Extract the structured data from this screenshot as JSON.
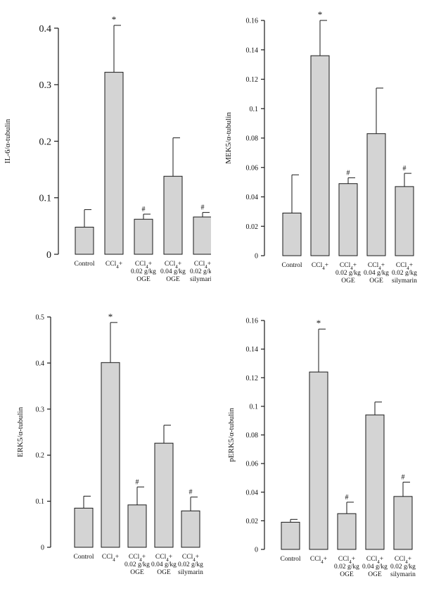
{
  "colors": {
    "bar": "#d4d4d4",
    "stroke": "#1a1a1a"
  },
  "chart_data": [
    {
      "type": "bar",
      "ylabel": "IL-6/α-tubulin",
      "ylim": [
        0,
        0.4
      ],
      "yticks": [
        "0",
        "0.1",
        "0.2",
        "0.3",
        "0.4"
      ],
      "tick_values": [
        0,
        0.1,
        0.2,
        0.3,
        0.4
      ],
      "categories": [
        [
          "Control"
        ],
        [
          "CCl4+"
        ],
        [
          "CCl4+",
          "0.02 g/kg",
          "OGE"
        ],
        [
          "CCl4+",
          "0.04 g/kg",
          "OGE"
        ],
        [
          "CCl4+",
          "0.02 g/kg",
          "silymarin"
        ]
      ],
      "values": [
        0.048,
        0.322,
        0.062,
        0.138,
        0.066
      ],
      "errors": [
        0.031,
        0.083,
        0.009,
        0.068,
        0.008
      ],
      "annotations": [
        "",
        "*",
        "#",
        "",
        "#"
      ]
    },
    {
      "type": "bar",
      "ylabel": "MEK5/α-tubulin",
      "ylim": [
        0,
        0.16
      ],
      "yticks": [
        "0",
        "0.02",
        "0.04",
        "0.06",
        "0.08",
        "0.1",
        "0.12",
        "0.14",
        "0.16"
      ],
      "tick_values": [
        0,
        0.02,
        0.04,
        0.06,
        0.08,
        0.1,
        0.12,
        0.14,
        0.16
      ],
      "categories": [
        [
          "Control"
        ],
        [
          "CCl4+"
        ],
        [
          "CCl4+",
          "0.02 g/kg",
          "OGE"
        ],
        [
          "CCl4+",
          "0.04 g/kg",
          "OGE"
        ],
        [
          "CCl4+",
          "0.02 g/kg",
          "silymarin"
        ]
      ],
      "values": [
        0.029,
        0.136,
        0.049,
        0.083,
        0.047
      ],
      "errors": [
        0.026,
        0.024,
        0.004,
        0.031,
        0.009
      ],
      "annotations": [
        "",
        "*",
        "#",
        "",
        "#"
      ]
    },
    {
      "type": "bar",
      "ylabel": "ERK5/α-tubulin",
      "ylim": [
        0,
        0.5
      ],
      "yticks": [
        "0",
        "0.1",
        "0.2",
        "0.3",
        "0.4",
        "0.5"
      ],
      "tick_values": [
        0,
        0.1,
        0.2,
        0.3,
        0.4,
        0.5
      ],
      "categories": [
        [
          "Control"
        ],
        [
          "CCl4+"
        ],
        [
          "CCl4+",
          "0.02 g/kg",
          "OGE"
        ],
        [
          "CCl4+",
          "0.04 g/kg",
          "OGE"
        ],
        [
          "CCl4+",
          "0.02 g/kg",
          "silymarin"
        ]
      ],
      "values": [
        0.085,
        0.401,
        0.092,
        0.226,
        0.079
      ],
      "errors": [
        0.026,
        0.087,
        0.039,
        0.039,
        0.03
      ],
      "annotations": [
        "",
        "*",
        "#",
        "",
        "#"
      ]
    },
    {
      "type": "bar",
      "ylabel": "pERK5/α-tubulin",
      "ylim": [
        0,
        0.16
      ],
      "yticks": [
        "0",
        "0.02",
        "0.04",
        "0.06",
        "0.08",
        "0.1",
        "0.12",
        "0.14",
        "0.16"
      ],
      "tick_values": [
        0,
        0.02,
        0.04,
        0.06,
        0.08,
        0.1,
        0.12,
        0.14,
        0.16
      ],
      "categories": [
        [
          "Control"
        ],
        [
          "CCl4+"
        ],
        [
          "CCl4+",
          "0.02 g/kg",
          "OGE"
        ],
        [
          "CCl4+",
          "0.04 g/kg",
          "OGE"
        ],
        [
          "CCl4+",
          "0.02 g/kg",
          "silymarin"
        ]
      ],
      "values": [
        0.019,
        0.124,
        0.025,
        0.094,
        0.037
      ],
      "errors": [
        0.002,
        0.03,
        0.008,
        0.009,
        0.01
      ],
      "annotations": [
        "",
        "*",
        "#",
        "",
        "#"
      ]
    }
  ]
}
